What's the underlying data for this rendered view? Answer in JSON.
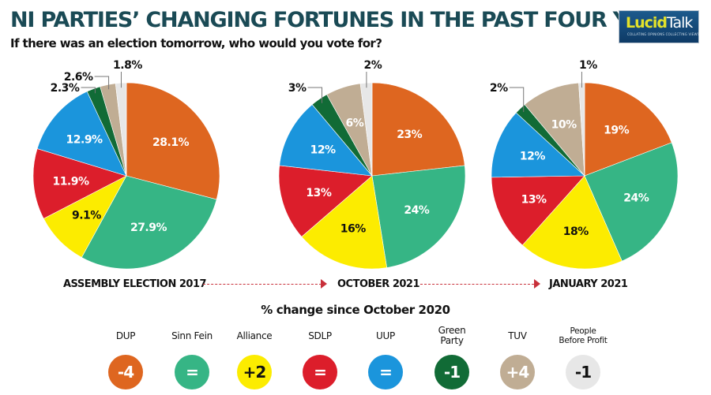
{
  "header": {
    "title": "NI PARTIES’ CHANGING FORTUNES IN THE PAST FOUR YEARS",
    "subtitle": "If there was an election tomorrow, who would you vote for?"
  },
  "logo": {
    "brand_part1": "Lucid",
    "brand_part2": "Talk",
    "tagline": "COLLATING OPINIONS COLLECTING VIEWS"
  },
  "parties": [
    {
      "name": "DUP",
      "color": "#de6620",
      "label_color": "#ffffff"
    },
    {
      "name": "Sinn Fein",
      "color": "#36b585",
      "label_color": "#ffffff"
    },
    {
      "name": "Alliance",
      "color": "#fcec00",
      "label_color": "#111111"
    },
    {
      "name": "SDLP",
      "color": "#dc1e2b",
      "label_color": "#ffffff"
    },
    {
      "name": "UUP",
      "color": "#1b95dc",
      "label_color": "#ffffff"
    },
    {
      "name": "Green Party",
      "color": "#116b36",
      "label_color": "#ffffff"
    },
    {
      "name": "TUV",
      "color": "#c0ad94",
      "label_color": "#ffffff"
    },
    {
      "name": "People Before Profit",
      "color": "#e7e7e7",
      "label_color": "#111111"
    }
  ],
  "chart_data": [
    {
      "type": "pie",
      "title": "ASSEMBLY ELECTION 2017",
      "categories": [
        "DUP",
        "Sinn Fein",
        "Alliance",
        "SDLP",
        "UUP",
        "Green Party",
        "TUV",
        "People Before Profit"
      ],
      "values": [
        28.1,
        27.9,
        9.1,
        11.9,
        12.9,
        2.3,
        2.6,
        1.8
      ],
      "labels": [
        "28.1%",
        "27.9%",
        "9.1%",
        "11.9%",
        "12.9%",
        "2.3%",
        "2.6%",
        "1.8%"
      ],
      "start_angle": "12 o'clock",
      "direction": "clockwise"
    },
    {
      "type": "pie",
      "title": "OCTOBER 2021",
      "categories": [
        "DUP",
        "Sinn Fein",
        "Alliance",
        "SDLP",
        "UUP",
        "Green Party",
        "TUV",
        "People Before Profit"
      ],
      "values": [
        23,
        24,
        16,
        13,
        12,
        3,
        6,
        2
      ],
      "labels": [
        "23%",
        "24%",
        "16%",
        "13%",
        "12%",
        "3%",
        "6%",
        "2%"
      ],
      "start_angle": "12 o'clock",
      "direction": "clockwise"
    },
    {
      "type": "pie",
      "title": "JANUARY 2021",
      "categories": [
        "DUP",
        "Sinn Fein",
        "Alliance",
        "SDLP",
        "UUP",
        "Green Party",
        "TUV",
        "People Before Profit"
      ],
      "values": [
        19,
        24,
        18,
        13,
        12,
        2,
        10,
        1
      ],
      "labels": [
        "19%",
        "24%",
        "18%",
        "13%",
        "12%",
        "2%",
        "10%",
        "1%"
      ],
      "start_angle": "12 o'clock",
      "direction": "clockwise"
    }
  ],
  "change": {
    "title": "% change since October 2020",
    "items": [
      {
        "party": "DUP",
        "value": "-4"
      },
      {
        "party": "Sinn Fein",
        "value": "="
      },
      {
        "party": "Alliance",
        "value": "+2"
      },
      {
        "party": "SDLP",
        "value": "="
      },
      {
        "party": "UUP",
        "value": "="
      },
      {
        "party": "Green Party",
        "label_line1": "Green",
        "label_line2": "Party",
        "value": "-1"
      },
      {
        "party": "TUV",
        "value": "+4"
      },
      {
        "party": "People Before Profit",
        "label_line1": "People",
        "label_line2": "Before Profit",
        "value": "-1"
      }
    ]
  }
}
